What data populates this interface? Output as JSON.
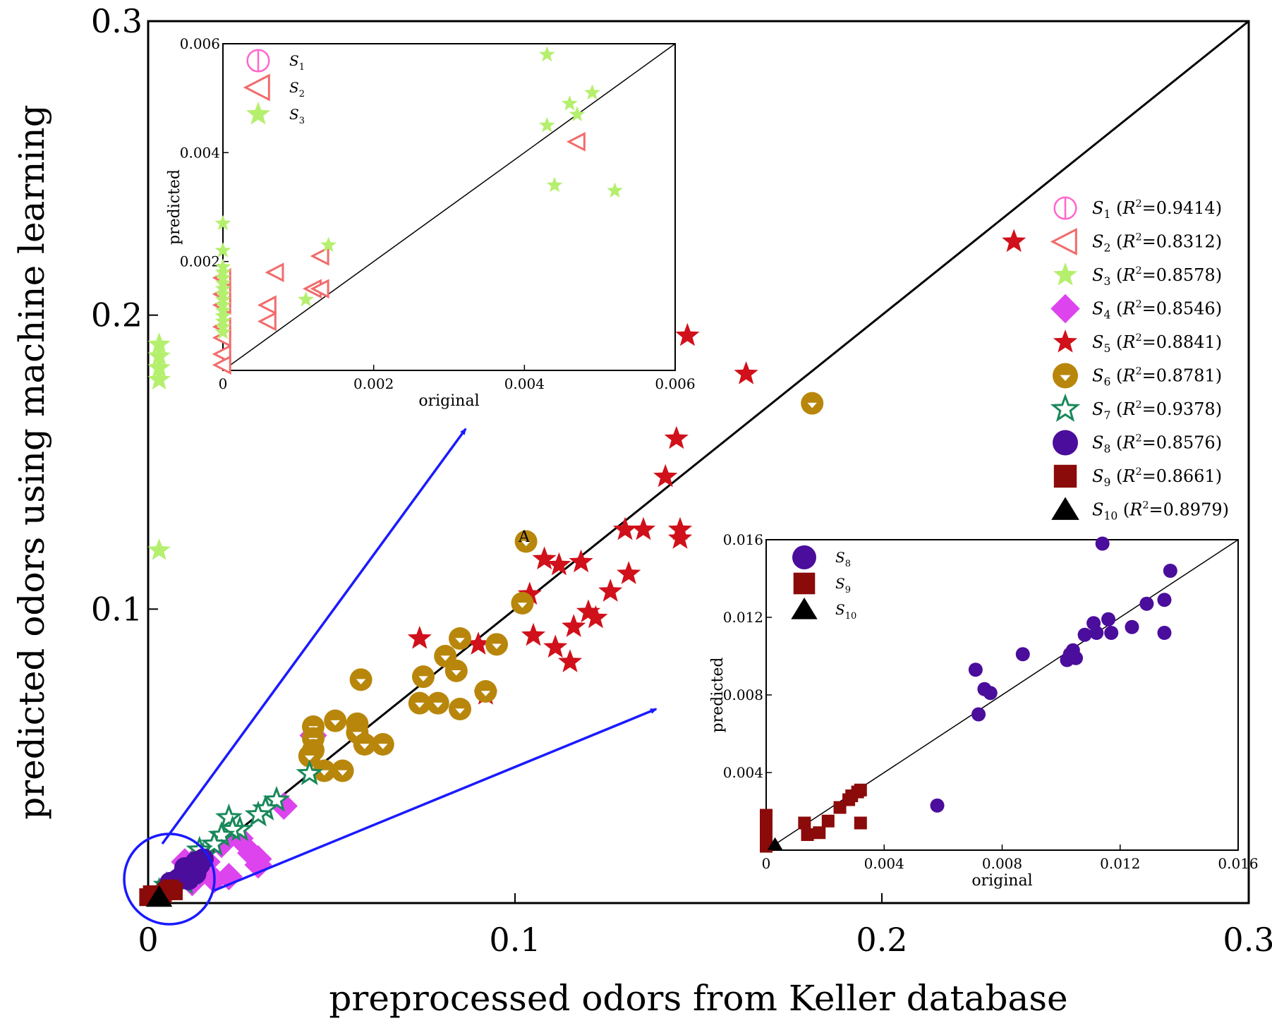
{
  "chart_data": {
    "type": "scatter",
    "xlabel": "preprocessed odors from Keller database",
    "ylabel": "predicted odors using machine learning",
    "xlim": [
      0,
      0.3
    ],
    "ylim": [
      0,
      0.3
    ],
    "xticks": [
      "0",
      "0.1",
      "0.2",
      "0.3"
    ],
    "yticks": [
      "0.1",
      "0.2",
      "0.3"
    ],
    "reference_line": "y = x",
    "annotation": "A",
    "annotation_point": [
      0.103,
      0.123
    ],
    "legend": [
      {
        "label": "S1 (R²=0.9414)",
        "sub": "1",
        "r2": "0.9414",
        "marker": "circle-half",
        "color": "#ff66cc"
      },
      {
        "label": "S2 (R²=0.8312)",
        "sub": "2",
        "r2": "0.8312",
        "marker": "triangle-left",
        "color": "#f26b6b"
      },
      {
        "label": "S3 (R²=0.8578)",
        "sub": "3",
        "r2": "0.8578",
        "marker": "star",
        "color": "#b5ef6e"
      },
      {
        "label": "S4 (R²=0.8546)",
        "sub": "4",
        "r2": "0.8546",
        "marker": "diamond",
        "color": "#dd44ee"
      },
      {
        "label": "S5 (R²=0.8841)",
        "sub": "5",
        "r2": "0.8841",
        "marker": "star",
        "color": "#d0101a"
      },
      {
        "label": "S6 (R²=0.8781)",
        "sub": "6",
        "r2": "0.8781",
        "marker": "circle-half-down",
        "color": "#b8860b"
      },
      {
        "label": "S7 (R²=0.9378)",
        "sub": "7",
        "r2": "0.9378",
        "marker": "star-open",
        "color": "#18885a"
      },
      {
        "label": "S8 (R²=0.8576)",
        "sub": "8",
        "r2": "0.8576",
        "marker": "circle",
        "color": "#4b0d9c"
      },
      {
        "label": "S9 (R²=0.8661)",
        "sub": "9",
        "r2": "0.8661",
        "marker": "square",
        "color": "#8b0a0a"
      },
      {
        "label": "S10 (R²=0.8979)",
        "sub": "10",
        "r2": "0.8979",
        "marker": "triangle",
        "color": "#000000"
      }
    ],
    "series": [
      {
        "name": "S3",
        "points": [
          [
            0.003,
            0.12
          ],
          [
            0.003,
            0.19
          ],
          [
            0.003,
            0.186
          ],
          [
            0.003,
            0.182
          ],
          [
            0.003,
            0.178
          ],
          [
            0.003,
            0.002
          ]
        ]
      },
      {
        "name": "S4",
        "points": [
          [
            0.045,
            0.057
          ],
          [
            0.037,
            0.033
          ],
          [
            0.03,
            0.013
          ],
          [
            0.03,
            0.015
          ],
          [
            0.028,
            0.017
          ],
          [
            0.025,
            0.022
          ],
          [
            0.02,
            0.02
          ],
          [
            0.016,
            0.014
          ],
          [
            0.014,
            0.016
          ],
          [
            0.012,
            0.013
          ],
          [
            0.01,
            0.014
          ],
          [
            0.022,
            0.009
          ],
          [
            0.012,
            0.007
          ],
          [
            0.018,
            0.008
          ]
        ]
      },
      {
        "name": "S5",
        "points": [
          [
            0.236,
            0.225
          ],
          [
            0.147,
            0.193
          ],
          [
            0.163,
            0.18
          ],
          [
            0.144,
            0.158
          ],
          [
            0.141,
            0.145
          ],
          [
            0.145,
            0.127
          ],
          [
            0.145,
            0.124
          ],
          [
            0.13,
            0.127
          ],
          [
            0.135,
            0.127
          ],
          [
            0.118,
            0.116
          ],
          [
            0.108,
            0.117
          ],
          [
            0.112,
            0.115
          ],
          [
            0.131,
            0.112
          ],
          [
            0.126,
            0.106
          ],
          [
            0.104,
            0.105
          ],
          [
            0.12,
            0.099
          ],
          [
            0.122,
            0.097
          ],
          [
            0.116,
            0.094
          ],
          [
            0.105,
            0.091
          ],
          [
            0.111,
            0.087
          ],
          [
            0.115,
            0.082
          ],
          [
            0.09,
            0.088
          ],
          [
            0.074,
            0.09
          ],
          [
            0.092,
            0.071
          ]
        ]
      },
      {
        "name": "S6",
        "points": [
          [
            0.181,
            0.17
          ],
          [
            0.103,
            0.123
          ],
          [
            0.102,
            0.102
          ],
          [
            0.085,
            0.09
          ],
          [
            0.095,
            0.088
          ],
          [
            0.081,
            0.084
          ],
          [
            0.084,
            0.079
          ],
          [
            0.058,
            0.076
          ],
          [
            0.075,
            0.077
          ],
          [
            0.092,
            0.072
          ],
          [
            0.074,
            0.068
          ],
          [
            0.079,
            0.068
          ],
          [
            0.085,
            0.066
          ],
          [
            0.051,
            0.062
          ],
          [
            0.057,
            0.061
          ],
          [
            0.045,
            0.06
          ],
          [
            0.057,
            0.058
          ],
          [
            0.045,
            0.056
          ],
          [
            0.059,
            0.054
          ],
          [
            0.064,
            0.054
          ],
          [
            0.045,
            0.052
          ],
          [
            0.044,
            0.05
          ],
          [
            0.048,
            0.045
          ],
          [
            0.053,
            0.045
          ]
        ]
      },
      {
        "name": "S7",
        "points": [
          [
            0.035,
            0.035
          ],
          [
            0.032,
            0.032
          ],
          [
            0.03,
            0.03
          ],
          [
            0.025,
            0.025
          ],
          [
            0.022,
            0.029
          ],
          [
            0.023,
            0.025
          ],
          [
            0.02,
            0.023
          ],
          [
            0.018,
            0.02
          ],
          [
            0.015,
            0.016
          ],
          [
            0.014,
            0.018
          ],
          [
            0.012,
            0.01
          ],
          [
            0.013,
            0.013
          ],
          [
            0.01,
            0.007
          ],
          [
            0.005,
            0.006
          ],
          [
            0.003,
            0.004
          ],
          [
            0.044,
            0.044
          ]
        ]
      },
      {
        "name": "S8",
        "points": [
          [
            0.015,
            0.015
          ],
          [
            0.013,
            0.014
          ],
          [
            0.012,
            0.012
          ],
          [
            0.01,
            0.012
          ],
          [
            0.013,
            0.01
          ],
          [
            0.011,
            0.01
          ],
          [
            0.009,
            0.009
          ],
          [
            0.008,
            0.008
          ],
          [
            0.011,
            0.008
          ],
          [
            0.007,
            0.007
          ],
          [
            0.006,
            0.007
          ],
          [
            0.01,
            0.011
          ],
          [
            0.014,
            0.013
          ]
        ]
      },
      {
        "name": "S9",
        "points": [
          [
            0.002,
            0.002
          ],
          [
            0.003,
            0.003
          ],
          [
            0.004,
            0.003
          ],
          [
            0.005,
            0.004
          ],
          [
            0.006,
            0.005
          ],
          [
            0.007,
            0.004
          ],
          [
            0.0,
            0.002
          ],
          [
            0.001,
            0.003
          ]
        ]
      },
      {
        "name": "S10",
        "points": [
          [
            0.003,
            0.002
          ]
        ]
      }
    ],
    "inset_top": {
      "xlabel": "original",
      "ylabel": "predicted",
      "xlim": [
        0,
        0.006
      ],
      "ylim": [
        0,
        0.006
      ],
      "xticks": [
        "0",
        "0.002",
        "0.004",
        "0.006"
      ],
      "yticks": [
        "0.002",
        "0.004",
        "0.006"
      ],
      "legend": [
        {
          "sub": "1",
          "marker": "circle-half",
          "color": "#ff66cc"
        },
        {
          "sub": "2",
          "marker": "triangle-left",
          "color": "#f26b6b"
        },
        {
          "sub": "3",
          "marker": "star",
          "color": "#b5ef6e"
        }
      ],
      "series": [
        {
          "name": "S2",
          "points": [
            [
              0.0047,
              0.0042
            ],
            [
              0.0013,
              0.0021
            ],
            [
              0.0007,
              0.0018
            ],
            [
              0.0012,
              0.0015
            ],
            [
              0.0013,
              0.0015
            ],
            [
              0.0006,
              0.0012
            ],
            [
              0.0006,
              0.0009
            ],
            [
              0.0,
              0.0017
            ],
            [
              0.0,
              0.0014
            ],
            [
              0.0,
              0.0012
            ],
            [
              0.0,
              0.0008
            ],
            [
              0.0,
              0.0006
            ],
            [
              0.0,
              0.0003
            ],
            [
              0.0,
              0.0001
            ]
          ]
        },
        {
          "name": "S3",
          "points": [
            [
              0.0043,
              0.0058
            ],
            [
              0.0049,
              0.0051
            ],
            [
              0.0046,
              0.0049
            ],
            [
              0.0047,
              0.0047
            ],
            [
              0.0043,
              0.0045
            ],
            [
              0.0044,
              0.0034
            ],
            [
              0.0052,
              0.0033
            ],
            [
              0.0014,
              0.0023
            ],
            [
              0.0011,
              0.0013
            ],
            [
              0.0,
              0.0027
            ],
            [
              0.0,
              0.0022
            ],
            [
              0.0,
              0.0019
            ],
            [
              0.0,
              0.0018
            ],
            [
              0.0,
              0.0017
            ],
            [
              0.0,
              0.0016
            ],
            [
              0.0,
              0.0015
            ],
            [
              0.0,
              0.0014
            ],
            [
              0.0,
              0.0013
            ],
            [
              0.0,
              0.0012
            ],
            [
              0.0,
              0.0011
            ],
            [
              0.0,
              0.001
            ],
            [
              0.0,
              0.0009
            ],
            [
              0.0,
              0.0008
            ],
            [
              0.0,
              0.0007
            ]
          ]
        }
      ]
    },
    "inset_bottom": {
      "xlabel": "original",
      "ylabel": "predicted",
      "xlim": [
        0,
        0.016
      ],
      "ylim": [
        0,
        0.016
      ],
      "xticks": [
        "0",
        "0.004",
        "0.008",
        "0.012",
        "0.016"
      ],
      "yticks": [
        "0.004",
        "0.008",
        "0.012",
        "0.016"
      ],
      "legend": [
        {
          "sub": "8",
          "marker": "circle",
          "color": "#4b0d9c"
        },
        {
          "sub": "9",
          "marker": "square",
          "color": "#8b0a0a"
        },
        {
          "sub": "10",
          "marker": "triangle",
          "color": "#000000"
        }
      ],
      "series": [
        {
          "name": "S8",
          "points": [
            [
              0.0114,
              0.0158
            ],
            [
              0.0137,
              0.0144
            ],
            [
              0.0135,
              0.0129
            ],
            [
              0.0129,
              0.0127
            ],
            [
              0.0116,
              0.0119
            ],
            [
              0.0111,
              0.0117
            ],
            [
              0.0124,
              0.0115
            ],
            [
              0.0108,
              0.0111
            ],
            [
              0.0112,
              0.0112
            ],
            [
              0.0117,
              0.0112
            ],
            [
              0.0135,
              0.0112
            ],
            [
              0.0104,
              0.0103
            ],
            [
              0.0103,
              0.0101
            ],
            [
              0.0102,
              0.0098
            ],
            [
              0.0087,
              0.0101
            ],
            [
              0.0105,
              0.0099
            ],
            [
              0.0071,
              0.0093
            ],
            [
              0.0074,
              0.0083
            ],
            [
              0.0076,
              0.0081
            ],
            [
              0.0072,
              0.007
            ],
            [
              0.0058,
              0.0023
            ]
          ]
        },
        {
          "name": "S9",
          "points": [
            [
              0.0032,
              0.0031
            ],
            [
              0.0031,
              0.003
            ],
            [
              0.0029,
              0.0028
            ],
            [
              0.0028,
              0.0026
            ],
            [
              0.0025,
              0.0022
            ],
            [
              0.0032,
              0.0014
            ],
            [
              0.0021,
              0.0015
            ],
            [
              0.0013,
              0.0014
            ],
            [
              0.0014,
              0.0008
            ],
            [
              0.0018,
              0.0009
            ],
            [
              0.0,
              0.0018
            ],
            [
              0.0,
              0.0014
            ],
            [
              0.0,
              0.001
            ],
            [
              0.0,
              0.0006
            ],
            [
              0.0,
              0.0002
            ]
          ]
        },
        {
          "name": "S10",
          "points": [
            [
              0.0003,
              0.0003
            ]
          ]
        }
      ]
    }
  }
}
